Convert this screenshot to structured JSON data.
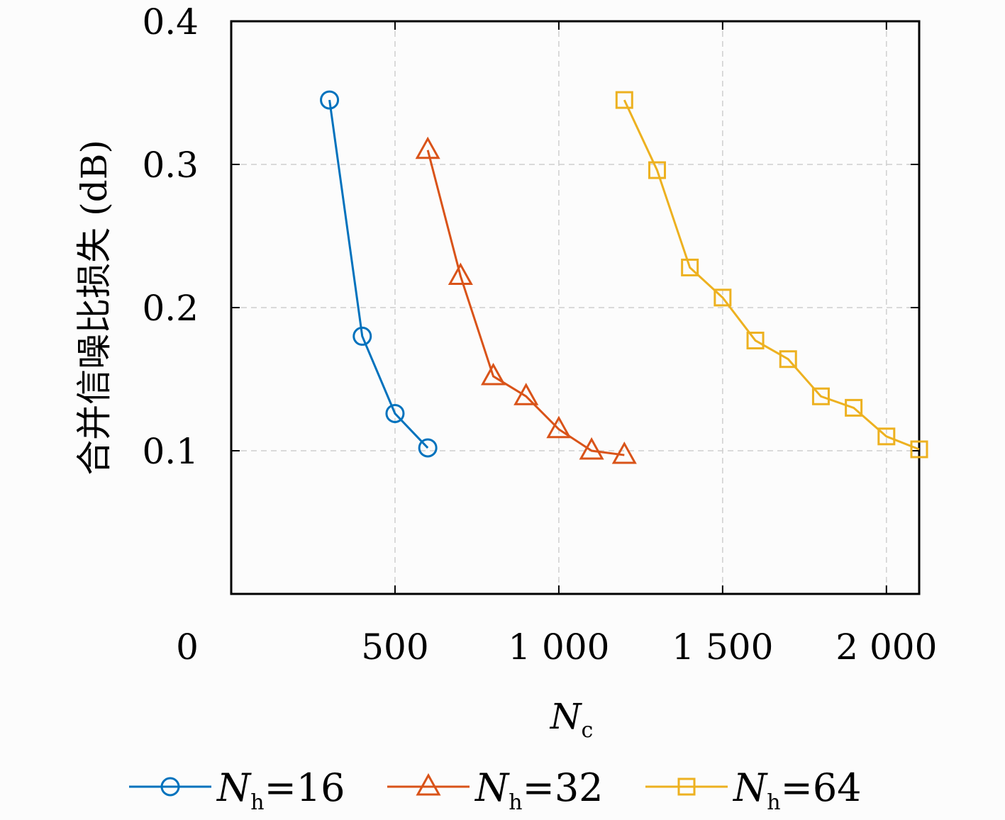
{
  "chart_data": {
    "type": "line",
    "xlabel": "N",
    "xlabel_sub": "c",
    "ylabel": "合并信噪比损失 (dB)",
    "xlim": [
      0,
      2100
    ],
    "ylim": [
      0,
      0.4
    ],
    "x_ticks": [
      0,
      500,
      1000,
      1500,
      2000
    ],
    "x_tick_labels": [
      "0",
      "500",
      "1 000",
      "1 500",
      "2 000"
    ],
    "y_ticks": [
      0.1,
      0.2,
      0.3,
      0.4
    ],
    "y_tick_labels": [
      "0.1",
      "0.2",
      "0.3",
      "0.4"
    ],
    "grid": true,
    "legend_position": "bottom",
    "series": [
      {
        "name": "N",
        "name_sub": "h",
        "name_suffix": "=16",
        "color": "#0072bd",
        "marker": "circle",
        "x": [
          300,
          400,
          500,
          600
        ],
        "y": [
          0.345,
          0.18,
          0.126,
          0.102
        ]
      },
      {
        "name": "N",
        "name_sub": "h",
        "name_suffix": "=32",
        "color": "#d95319",
        "marker": "triangle",
        "x": [
          600,
          700,
          800,
          900,
          1000,
          1100,
          1200
        ],
        "y": [
          0.31,
          0.222,
          0.152,
          0.138,
          0.115,
          0.1,
          0.097
        ]
      },
      {
        "name": "N",
        "name_sub": "h",
        "name_suffix": "=64",
        "color": "#edb120",
        "marker": "square",
        "x": [
          1200,
          1300,
          1400,
          1500,
          1600,
          1700,
          1800,
          1900,
          2000,
          2100
        ],
        "y": [
          0.345,
          0.296,
          0.228,
          0.207,
          0.177,
          0.164,
          0.138,
          0.13,
          0.11,
          0.101
        ]
      }
    ]
  }
}
